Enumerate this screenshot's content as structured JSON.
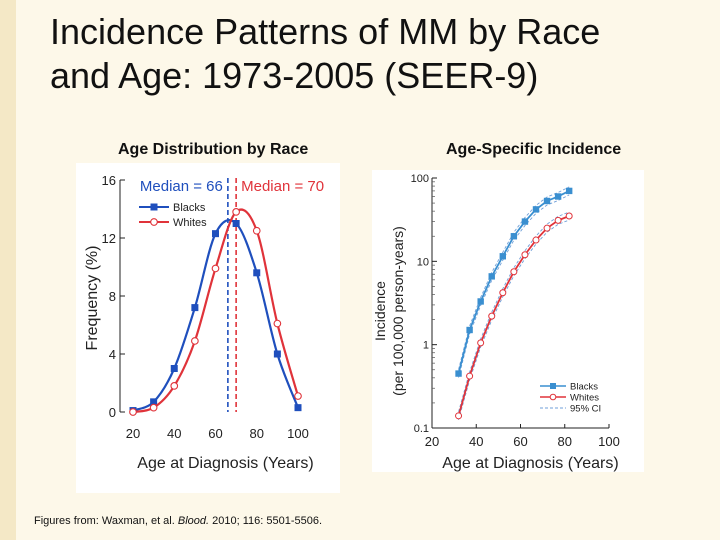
{
  "slide": {
    "title_line1": "Incidence Patterns of MM by Race",
    "title_line2": "and Age: 1973-2005 (SEER-9)",
    "footer_prefix": "Figures from: Waxman, et al. ",
    "footer_journal": "Blood.",
    "footer_suffix": " 2010; 116: 5501-5506."
  },
  "colors": {
    "blacks": "#1f4fbd",
    "whites": "#e0333a",
    "ci": "#6f9fd8",
    "blue_line": "#3a8fd0"
  },
  "chart_data": [
    {
      "type": "line",
      "panel_title": "Age Distribution by Race",
      "xlabel": "Age at Diagnosis (Years)",
      "ylabel": "Frequency (%)",
      "xlim": [
        20,
        100
      ],
      "ylim": [
        0,
        16
      ],
      "xticks": [
        "20",
        "40",
        "60",
        "80",
        "100"
      ],
      "yticks": [
        "0",
        "4",
        "8",
        "12",
        "16"
      ],
      "grid": false,
      "legend": "top-left",
      "series": [
        {
          "name": "Blacks",
          "x": [
            20,
            30,
            40,
            50,
            60,
            70,
            80,
            90,
            100
          ],
          "y": [
            0.1,
            0.7,
            3.0,
            7.2,
            12.3,
            13.0,
            9.6,
            4.0,
            0.3
          ]
        },
        {
          "name": "Whites",
          "x": [
            20,
            30,
            40,
            50,
            60,
            70,
            80,
            90,
            100
          ],
          "y": [
            0.0,
            0.3,
            1.8,
            4.9,
            9.9,
            13.8,
            12.5,
            6.1,
            1.1
          ]
        }
      ],
      "medians": [
        {
          "label": "Median = 66",
          "value": 66,
          "series": "Blacks"
        },
        {
          "label": "Median = 70",
          "value": 70,
          "series": "Whites"
        }
      ]
    },
    {
      "type": "line",
      "panel_title": "Age-Specific Incidence",
      "xlabel": "Age at Diagnosis (Years)",
      "ylabel": "Incidence",
      "ylabel2": "(per 100,000 person-years)",
      "xlim": [
        20,
        100
      ],
      "ylim": [
        0.1,
        100
      ],
      "yscale": "log",
      "xticks": [
        "20",
        "40",
        "60",
        "80",
        "100"
      ],
      "yticks": [
        "0.1",
        "1",
        "10",
        "100"
      ],
      "grid": false,
      "legend": "bottom-right",
      "legend_ci": "95% CI",
      "series": [
        {
          "name": "Blacks",
          "x": [
            32,
            37,
            42,
            47,
            52,
            57,
            62,
            67,
            72,
            77,
            82
          ],
          "y": [
            0.45,
            1.5,
            3.3,
            6.6,
            11.5,
            20,
            30,
            42,
            53,
            60,
            70
          ]
        },
        {
          "name": "Whites",
          "x": [
            32,
            37,
            42,
            47,
            52,
            57,
            62,
            67,
            72,
            77,
            82
          ],
          "y": [
            0.14,
            0.42,
            1.05,
            2.2,
            4.2,
            7.5,
            12,
            18,
            25,
            31,
            35
          ]
        }
      ]
    }
  ]
}
